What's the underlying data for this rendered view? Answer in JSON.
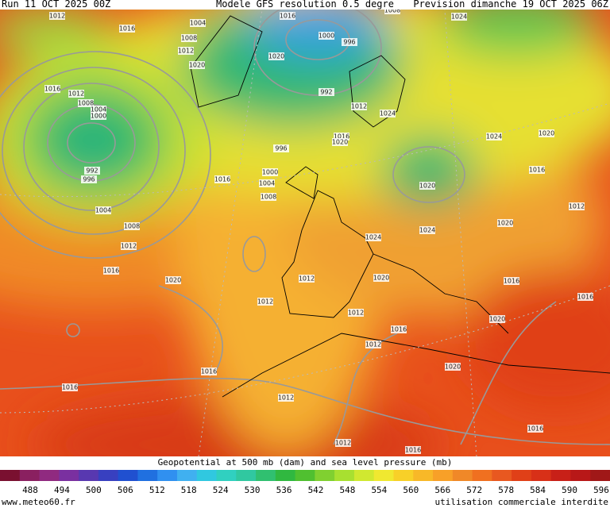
{
  "header": {
    "left": "Run 11 OCT 2025 00Z",
    "center": "Modele GFS resolution 0.5 degre",
    "right": "Prevision dimanche 19 OCT 2025 06Z"
  },
  "isobar_labels": [
    1012,
    1016,
    1004,
    1008,
    1012,
    1020,
    1016,
    1012,
    1008,
    1004,
    1000,
    992,
    996,
    1004,
    1008,
    1012,
    1016,
    1020,
    1016,
    1016,
    1020,
    1000,
    996,
    992,
    996,
    1000,
    1004,
    1008,
    1012,
    1024,
    1016,
    1020,
    1024,
    1024,
    1020,
    1016,
    1012,
    1020,
    1024,
    1020,
    1024,
    1012,
    1020,
    1016,
    1016,
    1012,
    1012,
    1016,
    1020,
    1012,
    1020,
    1016,
    1016,
    1012,
    1012,
    1016,
    1016,
    1008
  ],
  "legend": {
    "title": "Geopotential at 500 mb (dam) and sea level pressure (mb)",
    "ticks": [
      488,
      494,
      500,
      506,
      512,
      518,
      524,
      530,
      536,
      542,
      548,
      554,
      560,
      566,
      572,
      578,
      584,
      590,
      596
    ]
  },
  "footer": {
    "left": "www.meteo60.fr",
    "right": "utilisation commerciale interdite"
  }
}
